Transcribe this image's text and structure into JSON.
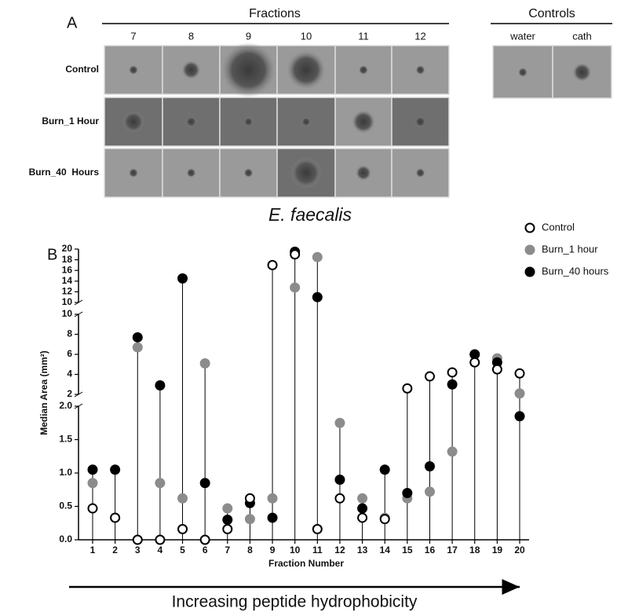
{
  "panel_a": {
    "label": "A",
    "fractions_title": "Fractions",
    "fractions": [
      "7",
      "8",
      "9",
      "10",
      "11",
      "12"
    ],
    "controls_title": "Controls",
    "controls": [
      "water",
      "cath"
    ],
    "rows": [
      "Control",
      "Burn_1 Hour",
      "Burn_40  Hours"
    ],
    "organism": "E. faecalis"
  },
  "chart_data": {
    "type": "scatter",
    "panel_label": "B",
    "x_label": "Fraction Number",
    "y_label": "Median Area (mm²)",
    "x": [
      1,
      2,
      3,
      4,
      5,
      6,
      7,
      8,
      9,
      10,
      11,
      12,
      13,
      14,
      15,
      16,
      17,
      18,
      19,
      20
    ],
    "xlim": [
      0.4,
      20.4
    ],
    "y_segments": [
      {
        "ylim": [
          0,
          2
        ],
        "yticks": [
          {
            "value": 0,
            "label": "0.0"
          },
          0.5,
          {
            "value": 1,
            "label": "1.0"
          },
          1.5,
          {
            "value": 2,
            "label": "2.0"
          }
        ]
      },
      {
        "ylim": [
          2,
          10
        ],
        "yticks": [
          2,
          4,
          6,
          8,
          10
        ]
      },
      {
        "ylim": [
          10,
          20
        ],
        "yticks": [
          10,
          12,
          14,
          16,
          18,
          20
        ]
      }
    ],
    "series": [
      {
        "name": "Control",
        "color": "#ffffff",
        "values": [
          0.47,
          0.33,
          0,
          0,
          0.16,
          0,
          0.16,
          0.62,
          17,
          19,
          0.16,
          0.62,
          0.33,
          0.31,
          2.6,
          3.8,
          4.2,
          5.2,
          4.5,
          4.1
        ]
      },
      {
        "name": "Burn_1 hour",
        "color": "#8c8c8c",
        "values": [
          0.85,
          0.33,
          6.7,
          0.85,
          0.62,
          5.1,
          0.47,
          0.31,
          0.62,
          12.8,
          18.5,
          1.75,
          0.62,
          0.33,
          0.62,
          0.72,
          1.32,
          6.0,
          5.6,
          2.1
        ]
      },
      {
        "name": "Burn_40 hours",
        "color": "#000000",
        "values": [
          1.05,
          1.05,
          7.7,
          2.9,
          14.5,
          0.85,
          0.3,
          0.55,
          0.33,
          19.5,
          11,
          0.9,
          0.47,
          1.05,
          0.7,
          1.1,
          3.0,
          6.0,
          5.2,
          1.85
        ]
      }
    ],
    "arrow_label": "Increasing peptide hydrophobicity"
  }
}
